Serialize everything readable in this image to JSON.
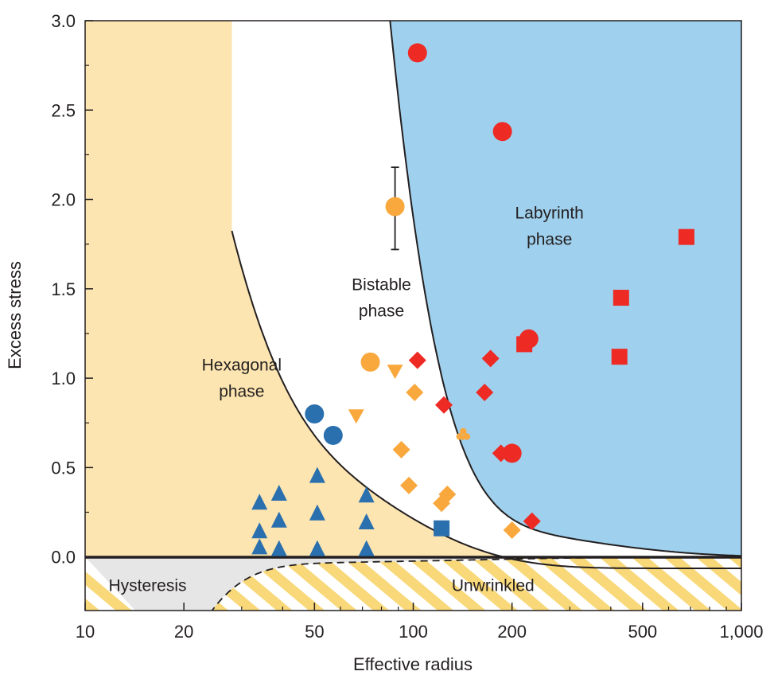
{
  "chart_data": {
    "type": "scatter",
    "title": "",
    "xlabel": "Effective radius",
    "ylabel": "Excess stress",
    "x_scale": "log",
    "xlim": [
      10,
      1000
    ],
    "ylim": [
      -0.3,
      3.0
    ],
    "x_ticks": [
      10,
      20,
      50,
      100,
      200,
      500,
      1000
    ],
    "x_tick_labels": [
      "10",
      "20",
      "50",
      "100",
      "200",
      "500",
      "1,000"
    ],
    "y_ticks": [
      0.0,
      0.5,
      1.0,
      1.5,
      2.0,
      2.5,
      3.0
    ],
    "y_tick_labels": [
      "0.0",
      "0.5",
      "1.0",
      "1.5",
      "2.0",
      "2.5",
      "3.0"
    ],
    "grid": false,
    "regions": [
      {
        "label_lines": [
          "Hexagonal",
          "phase"
        ],
        "color": "#fce5b0",
        "at": [
          30,
          1.0
        ]
      },
      {
        "label_lines": [
          "Bistable",
          "phase"
        ],
        "color": "#ffffff",
        "at": [
          80,
          1.45
        ]
      },
      {
        "label_lines": [
          "Labyrinth",
          "phase"
        ],
        "color": "#9fd0ed",
        "at": [
          260,
          1.85
        ]
      },
      {
        "label_lines": [
          "Hysteresis"
        ],
        "color": "#fce5b0",
        "at": [
          15.5,
          -0.16
        ]
      },
      {
        "label_lines": [
          "Unwrinkled"
        ],
        "color": "#e6e6e6",
        "at": [
          175,
          -0.16
        ]
      }
    ],
    "colors": {
      "blue": "#2a6fae",
      "orange": "#f9a83e",
      "red": "#ee2a24",
      "hexagonal": "#fce5b0",
      "labyrinth": "#9fd0ed",
      "unwrinkled": "#e6e6e6",
      "hatch": "#f8d878"
    },
    "points": [
      {
        "x": 103,
        "y": 2.82,
        "marker": "circle",
        "color": "red"
      },
      {
        "x": 187,
        "y": 2.38,
        "marker": "circle",
        "color": "red"
      },
      {
        "x": 680,
        "y": 1.79,
        "marker": "square",
        "color": "red"
      },
      {
        "x": 430,
        "y": 1.45,
        "marker": "square",
        "color": "red"
      },
      {
        "x": 425,
        "y": 1.12,
        "marker": "square",
        "color": "red"
      },
      {
        "x": 218,
        "y": 1.19,
        "marker": "square",
        "color": "red"
      },
      {
        "x": 225,
        "y": 1.22,
        "marker": "circle",
        "color": "red"
      },
      {
        "x": 200,
        "y": 0.58,
        "marker": "circle",
        "color": "red"
      },
      {
        "x": 103,
        "y": 1.1,
        "marker": "diamond",
        "color": "red"
      },
      {
        "x": 172,
        "y": 1.11,
        "marker": "diamond",
        "color": "red"
      },
      {
        "x": 165,
        "y": 0.92,
        "marker": "diamond",
        "color": "red"
      },
      {
        "x": 124,
        "y": 0.85,
        "marker": "diamond",
        "color": "red"
      },
      {
        "x": 185,
        "y": 0.58,
        "marker": "diamond",
        "color": "red"
      },
      {
        "x": 230,
        "y": 0.2,
        "marker": "diamond",
        "color": "red"
      },
      {
        "x": 88,
        "y": 1.96,
        "marker": "circle",
        "color": "orange",
        "error": [
          1.72,
          2.18
        ]
      },
      {
        "x": 74,
        "y": 1.09,
        "marker": "circle",
        "color": "orange"
      },
      {
        "x": 88,
        "y": 1.04,
        "marker": "triangle-down",
        "color": "orange"
      },
      {
        "x": 67,
        "y": 0.79,
        "marker": "triangle-down",
        "color": "orange"
      },
      {
        "x": 101,
        "y": 0.92,
        "marker": "diamond",
        "color": "orange"
      },
      {
        "x": 92,
        "y": 0.6,
        "marker": "diamond",
        "color": "orange"
      },
      {
        "x": 97,
        "y": 0.4,
        "marker": "diamond",
        "color": "orange"
      },
      {
        "x": 122,
        "y": 0.3,
        "marker": "diamond",
        "color": "orange"
      },
      {
        "x": 127,
        "y": 0.35,
        "marker": "diamond",
        "color": "orange"
      },
      {
        "x": 200,
        "y": 0.15,
        "marker": "diamond",
        "color": "orange"
      },
      {
        "x": 142,
        "y": 0.68,
        "marker": "club",
        "color": "orange"
      },
      {
        "x": 50,
        "y": 0.8,
        "marker": "circle",
        "color": "blue"
      },
      {
        "x": 57,
        "y": 0.68,
        "marker": "circle",
        "color": "blue"
      },
      {
        "x": 122,
        "y": 0.16,
        "marker": "square",
        "color": "blue"
      },
      {
        "x": 34,
        "y": 0.3,
        "marker": "triangle-up",
        "color": "blue"
      },
      {
        "x": 34,
        "y": 0.14,
        "marker": "triangle-up",
        "color": "blue"
      },
      {
        "x": 34,
        "y": 0.05,
        "marker": "triangle-up",
        "color": "blue"
      },
      {
        "x": 39,
        "y": 0.35,
        "marker": "triangle-up",
        "color": "blue"
      },
      {
        "x": 39,
        "y": 0.2,
        "marker": "triangle-up",
        "color": "blue"
      },
      {
        "x": 39,
        "y": 0.04,
        "marker": "triangle-up",
        "color": "blue"
      },
      {
        "x": 51,
        "y": 0.45,
        "marker": "triangle-up",
        "color": "blue"
      },
      {
        "x": 51,
        "y": 0.24,
        "marker": "triangle-up",
        "color": "blue"
      },
      {
        "x": 51,
        "y": 0.04,
        "marker": "triangle-up",
        "color": "blue"
      },
      {
        "x": 72,
        "y": 0.34,
        "marker": "triangle-up",
        "color": "blue"
      },
      {
        "x": 72,
        "y": 0.19,
        "marker": "triangle-up",
        "color": "blue"
      },
      {
        "x": 72,
        "y": 0.04,
        "marker": "triangle-up",
        "color": "blue"
      }
    ]
  }
}
